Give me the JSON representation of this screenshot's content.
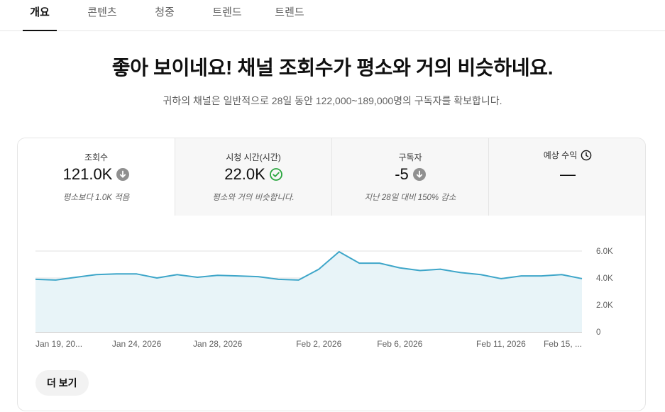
{
  "tabs": [
    {
      "label": "개요",
      "active": true
    },
    {
      "label": "콘텐츠",
      "active": false
    },
    {
      "label": "청중",
      "active": false
    },
    {
      "label": "트렌드",
      "active": false
    },
    {
      "label": "트렌드",
      "active": false
    }
  ],
  "summary": {
    "headline": "좋아 보이네요! 채널 조회수가 평소와 거의 비슷하네요.",
    "subline": "귀하의 채널은 일반적으로 28일 동안 122,000~189,000명의 구독자를 확보합니다."
  },
  "metrics": [
    {
      "label": "조회수",
      "value": "121.0K",
      "status_icon": "arrow-down-circle-icon",
      "note": "평소보다 1.0K 적음",
      "selected": true
    },
    {
      "label": "시청 시간(시간)",
      "value": "22.0K",
      "status_icon": "check-circle-icon",
      "note": "평소와 거의 비슷합니다.",
      "selected": false
    },
    {
      "label": "구독자",
      "value": "-5",
      "status_icon": "arrow-down-circle-icon",
      "note": "지난 28일 대비 150% 감소",
      "selected": false
    },
    {
      "label": "예상 수익",
      "value": "—",
      "status_icon": "clock-icon",
      "note": "",
      "selected": false
    }
  ],
  "colors": {
    "line": "#3ea6c9",
    "area": "#e8f4f8",
    "check": "#2ba640",
    "arrow_circle": "#909090"
  },
  "chart_data": {
    "type": "area",
    "x": [
      "Jan 19",
      "Jan 20",
      "Jan 21",
      "Jan 22",
      "Jan 23",
      "Jan 24",
      "Jan 25",
      "Jan 26",
      "Jan 27",
      "Jan 28",
      "Jan 29",
      "Jan 30",
      "Jan 31",
      "Feb 1",
      "Feb 2",
      "Feb 3",
      "Feb 4",
      "Feb 5",
      "Feb 6",
      "Feb 7",
      "Feb 8",
      "Feb 9",
      "Feb 10",
      "Feb 11",
      "Feb 12",
      "Feb 13",
      "Feb 14",
      "Feb 15"
    ],
    "series": [
      {
        "values": [
          3900,
          3850,
          4050,
          4250,
          4300,
          4300,
          4000,
          4250,
          4050,
          4200,
          4150,
          4100,
          3900,
          3850,
          4650,
          5950,
          5100,
          5100,
          4750,
          4550,
          4650,
          4400,
          4250,
          3950,
          4150,
          4150,
          4250,
          3950
        ]
      }
    ],
    "x_tick_labels": [
      "Jan 19, 20...",
      "Jan 24, 2026",
      "Jan 28, 2026",
      "Feb 2, 2026",
      "Feb 6, 2026",
      "Feb 11, 2026",
      "Feb 15, ..."
    ],
    "y_tick_labels": [
      "6.0K",
      "4.0K",
      "2.0K",
      "0"
    ],
    "y_ticks": [
      6000,
      4000,
      2000,
      0
    ],
    "ylim": [
      0,
      6000
    ],
    "grid": true
  },
  "actions": {
    "more_label": "더 보기"
  }
}
